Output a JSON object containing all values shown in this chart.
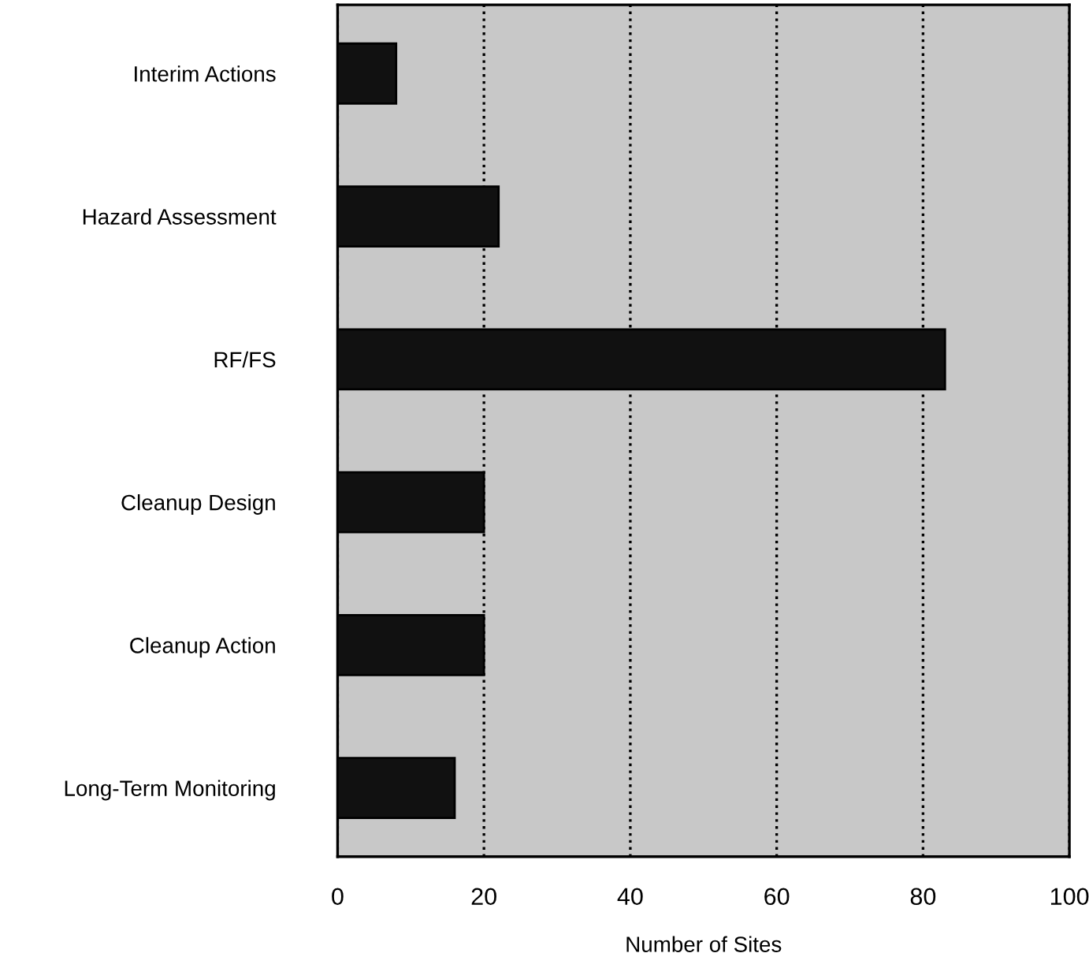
{
  "chart_data": {
    "type": "bar",
    "orientation": "horizontal",
    "xlabel": "Number of Sites",
    "categories": [
      "Interim Actions",
      "Hazard Assessment",
      "RF/FS",
      "Cleanup Design",
      "Cleanup Action",
      "Long-Term Monitoring"
    ],
    "values": [
      8,
      22,
      83,
      20,
      20,
      16
    ],
    "color": "#111111",
    "xlim": [
      0,
      100
    ],
    "xticks": [
      0,
      20,
      40,
      60,
      80,
      100
    ],
    "grid": "x"
  }
}
